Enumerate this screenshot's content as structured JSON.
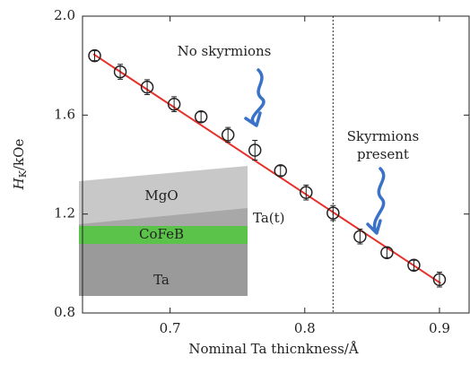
{
  "chart_data": {
    "type": "scatter",
    "xlabel": "Nominal Ta thicnkness/Å",
    "ylabel": {
      "main": "H",
      "sub": "K",
      "unit": "/kOe"
    },
    "x": [
      0.644,
      0.663,
      0.683,
      0.703,
      0.723,
      0.743,
      0.763,
      0.782,
      0.801,
      0.821,
      0.841,
      0.861,
      0.881,
      0.9
    ],
    "series": [
      {
        "color": "#222222",
        "values": [
          1.84,
          1.775,
          1.713,
          1.644,
          1.593,
          1.52,
          1.458,
          1.375,
          1.287,
          1.204,
          1.109,
          1.044,
          0.993,
          0.935
        ],
        "errors": [
          0.02,
          0.03,
          0.03,
          0.03,
          0.02,
          0.03,
          0.04,
          0.02,
          0.03,
          0.03,
          0.03,
          0.02,
          0.02,
          0.03
        ]
      }
    ],
    "fit": {
      "color": "#e8302a",
      "x": [
        0.643,
        0.901
      ],
      "y": [
        1.847,
        0.92
      ]
    },
    "threshold_x": 0.821,
    "xlim": [
      0.635,
      0.922
    ],
    "xticks": [
      0.7,
      0.8,
      0.9
    ],
    "ylim": [
      0.8,
      2.0
    ],
    "yticks": [
      {
        "value": 0.8,
        "label": "0.8"
      },
      {
        "value": 1.2,
        "label": "1.2"
      },
      {
        "value": 1.6,
        "label": "1.6"
      },
      {
        "value": 2.0,
        "label": "2.0"
      }
    ],
    "annotations": {
      "no_skyrmions": "No skyrmions",
      "skyrmions": "Skyrmions",
      "present": "present"
    },
    "inset": {
      "top": "MgO",
      "wedge": "Ta(t)",
      "middle": "CoFeB",
      "bottom": "Ta"
    }
  }
}
